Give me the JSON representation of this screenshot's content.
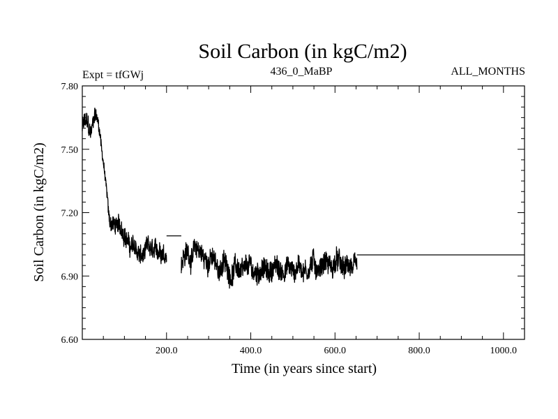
{
  "chart_data": {
    "type": "line",
    "title": "Soil Carbon (in kgC/m2)",
    "subtitle_left": "Expt = tfGWj",
    "subtitle_center": "436_0_MaBP",
    "subtitle_right": "ALL_MONTHS",
    "xlabel": "Time (in years since start)",
    "ylabel": "Soil Carbon (in kgC/m2)",
    "xlim": [
      0,
      1050
    ],
    "ylim": [
      6.6,
      7.8
    ],
    "x_ticks": [
      200,
      400,
      600,
      800,
      1000
    ],
    "x_tick_labels": [
      "200.0",
      "400.0",
      "600.0",
      "800.0",
      "1000.0"
    ],
    "y_ticks": [
      6.6,
      6.9,
      7.2,
      7.5,
      7.8
    ],
    "y_tick_labels": [
      "6.60",
      "6.90",
      "7.20",
      "7.50",
      "7.80"
    ],
    "series": [
      {
        "name": "Soil Carbon",
        "color": "#000000",
        "noisy_trend": [
          {
            "x": 0,
            "y": 7.6,
            "amp": 0.1
          },
          {
            "x": 10,
            "y": 7.61,
            "amp": 0.09
          },
          {
            "x": 20,
            "y": 7.58,
            "amp": 0.09
          },
          {
            "x": 30,
            "y": 7.68,
            "amp": 0.07
          },
          {
            "x": 40,
            "y": 7.6,
            "amp": 0.06
          },
          {
            "x": 50,
            "y": 7.45,
            "amp": 0.05
          },
          {
            "x": 58,
            "y": 7.3,
            "amp": 0.05
          },
          {
            "x": 65,
            "y": 7.14,
            "amp": 0.07
          },
          {
            "x": 80,
            "y": 7.15,
            "amp": 0.09
          },
          {
            "x": 100,
            "y": 7.1,
            "amp": 0.09
          },
          {
            "x": 130,
            "y": 7.0,
            "amp": 0.09
          },
          {
            "x": 160,
            "y": 7.01,
            "amp": 0.09
          },
          {
            "x": 200,
            "y": 7.02,
            "amp": 0.09
          }
        ],
        "flat_segments": [
          {
            "x0": 200,
            "x1": 235,
            "y": 7.09
          },
          {
            "x0": 652,
            "x1": 1050,
            "y": 7.0
          }
        ],
        "noisy_trend_2": [
          {
            "x": 235,
            "y": 6.98,
            "amp": 0.1
          },
          {
            "x": 270,
            "y": 7.02,
            "amp": 0.1
          },
          {
            "x": 320,
            "y": 6.95,
            "amp": 0.1
          },
          {
            "x": 380,
            "y": 6.92,
            "amp": 0.1
          },
          {
            "x": 450,
            "y": 6.93,
            "amp": 0.1
          },
          {
            "x": 520,
            "y": 6.94,
            "amp": 0.1
          },
          {
            "x": 580,
            "y": 6.96,
            "amp": 0.1
          },
          {
            "x": 652,
            "y": 6.93,
            "amp": 0.1
          }
        ]
      }
    ]
  }
}
